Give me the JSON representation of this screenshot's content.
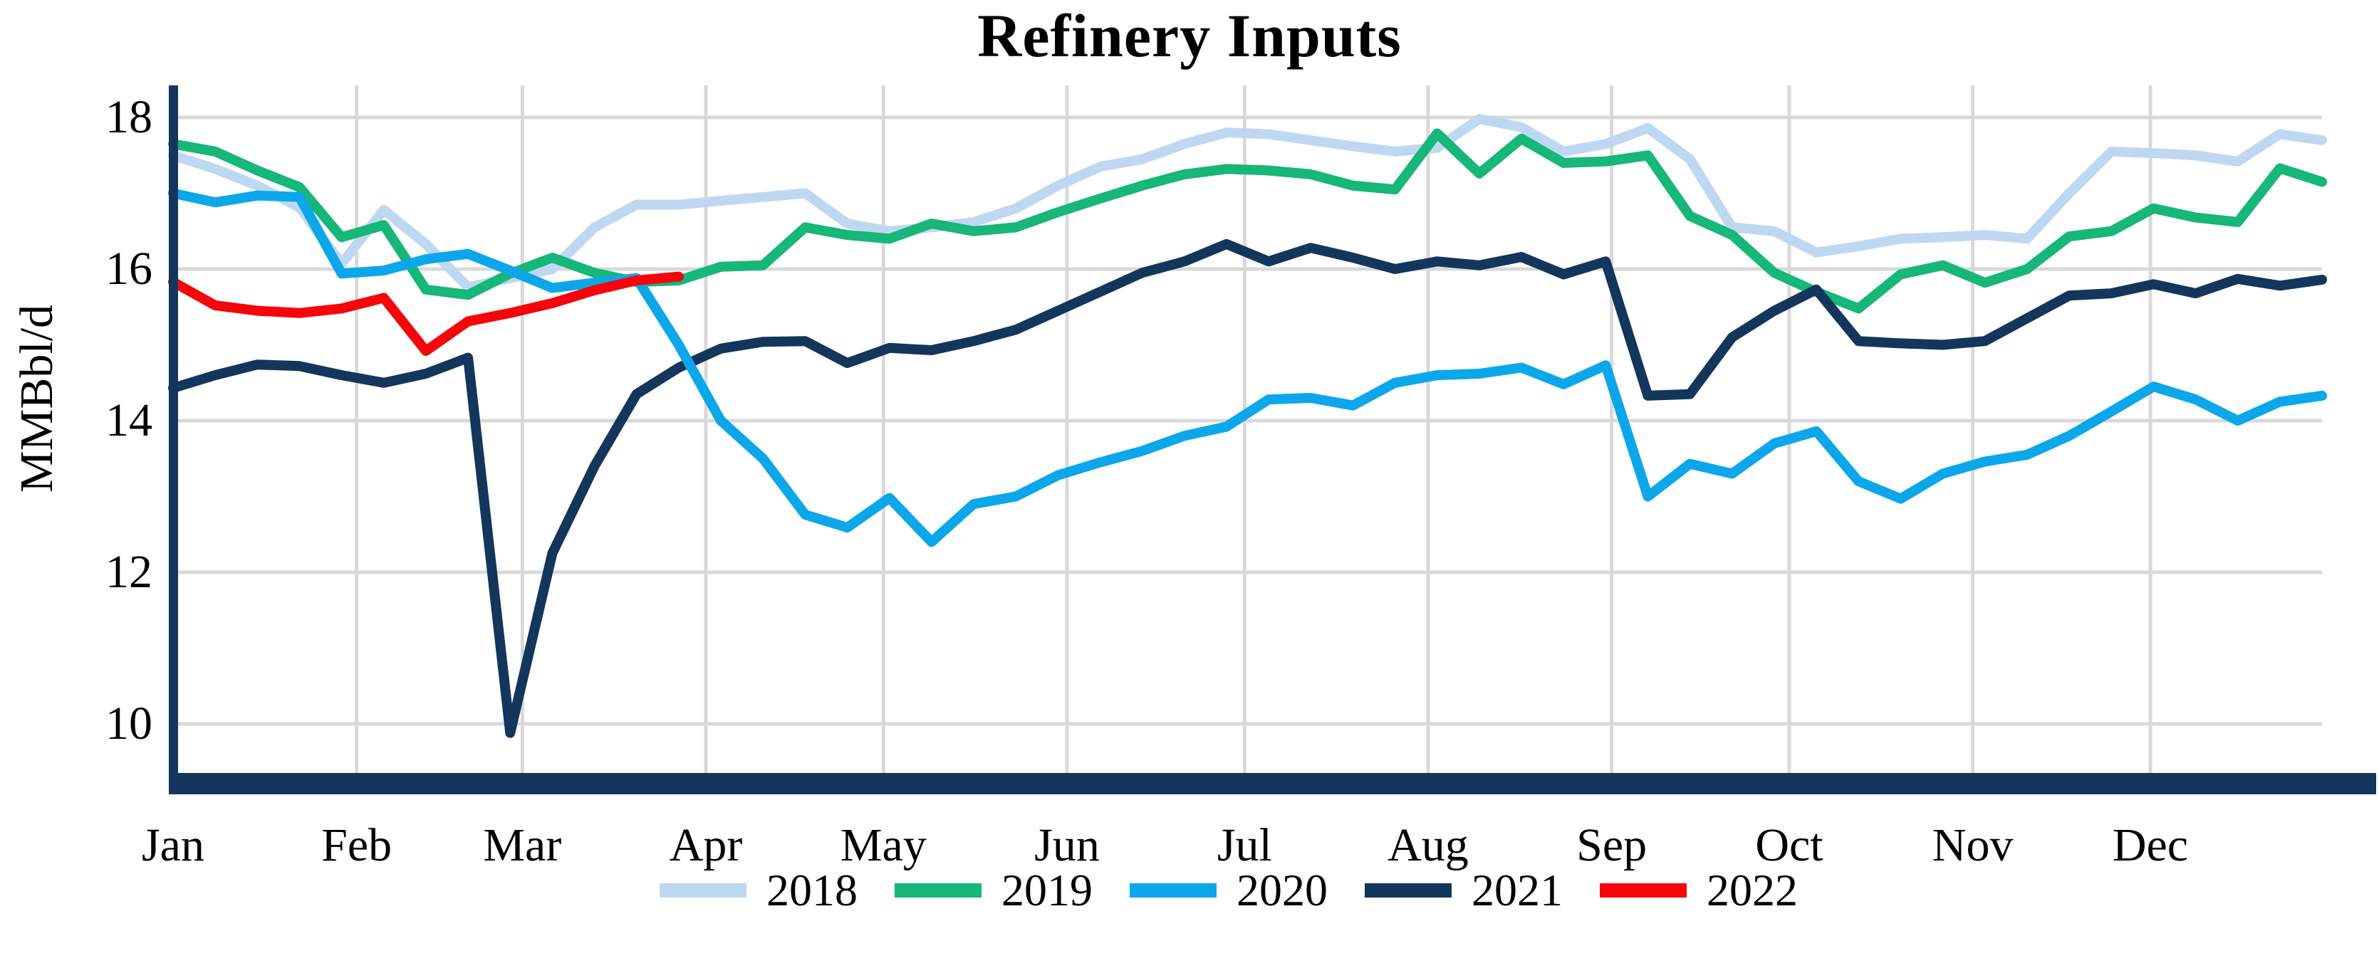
{
  "title": "Refinery Inputs",
  "y_axis": {
    "label": "MMBbl/d",
    "ticks": [
      18,
      16,
      14,
      12,
      10
    ]
  },
  "x_axis": {
    "months": [
      "Jan",
      "Feb",
      "Mar",
      "Apr",
      "May",
      "Jun",
      "Jul",
      "Aug",
      "Sep",
      "Oct",
      "Nov",
      "Dec"
    ]
  },
  "legend": [
    {
      "label": "2018",
      "color": "#BFD8F2"
    },
    {
      "label": "2019",
      "color": "#17B679"
    },
    {
      "label": "2020",
      "color": "#0CA7EA"
    },
    {
      "label": "2021",
      "color": "#14365D"
    },
    {
      "label": "2022",
      "color": "#F6060A"
    }
  ],
  "colors": {
    "grid": "#D9D9D9",
    "axis": "#14365D",
    "background": "#FFFFFF",
    "text": "#000000"
  },
  "chart_data": {
    "type": "line",
    "title": "Refinery Inputs",
    "ylabel": "MMBbl/d",
    "xlabel": "",
    "x_unit": "weekly data, Jan through Dec",
    "month_labels": [
      "Jan",
      "Feb",
      "Mar",
      "Apr",
      "May",
      "Jun",
      "Jul",
      "Aug",
      "Sep",
      "Oct",
      "Nov",
      "Dec"
    ],
    "month_day_offsets": [
      0,
      31,
      59,
      90,
      120,
      151,
      181,
      212,
      243,
      273,
      304,
      334
    ],
    "ylim": [
      9.0,
      18.45
    ],
    "yticks": [
      18,
      16,
      14,
      12,
      10
    ],
    "grid": true,
    "legend_position": "bottom",
    "series": [
      {
        "name": "2018",
        "color": "#BFD8F2",
        "values": [
          17.5,
          17.32,
          17.1,
          16.81,
          16.07,
          16.78,
          16.33,
          15.76,
          15.88,
          16.0,
          16.55,
          16.85,
          16.85,
          16.9,
          16.95,
          17.0,
          16.6,
          16.5,
          16.55,
          16.62,
          16.8,
          17.1,
          17.35,
          17.45,
          17.65,
          17.8,
          17.78,
          17.7,
          17.62,
          17.55,
          17.6,
          17.98,
          17.87,
          17.55,
          17.65,
          17.86,
          17.45,
          16.55,
          16.5,
          16.22,
          16.3,
          16.4,
          16.42,
          16.45,
          16.4,
          17.0,
          17.55,
          17.53,
          17.5,
          17.42,
          17.78,
          17.7
        ]
      },
      {
        "name": "2019",
        "color": "#17B679",
        "values": [
          17.65,
          17.55,
          17.3,
          17.08,
          16.42,
          16.58,
          15.73,
          15.66,
          15.94,
          16.15,
          15.95,
          15.83,
          15.85,
          16.03,
          16.05,
          16.55,
          16.45,
          16.4,
          16.6,
          16.5,
          16.55,
          16.75,
          16.93,
          17.1,
          17.25,
          17.32,
          17.3,
          17.25,
          17.1,
          17.05,
          17.79,
          17.26,
          17.72,
          17.4,
          17.42,
          17.5,
          16.7,
          16.45,
          15.95,
          15.7,
          15.48,
          15.93,
          16.05,
          15.82,
          16.0,
          16.43,
          16.5,
          16.8,
          16.68,
          16.62,
          17.33,
          17.15
        ]
      },
      {
        "name": "2020",
        "color": "#0CA7EA",
        "values": [
          17.0,
          16.88,
          16.97,
          16.95,
          15.94,
          15.98,
          16.13,
          16.2,
          15.98,
          15.75,
          15.82,
          15.88,
          15.0,
          14.0,
          13.5,
          12.76,
          12.59,
          12.98,
          12.4,
          12.9,
          13.0,
          13.28,
          13.45,
          13.6,
          13.8,
          13.92,
          14.28,
          14.3,
          14.2,
          14.5,
          14.6,
          14.62,
          14.7,
          14.48,
          14.73,
          13.0,
          13.43,
          13.3,
          13.7,
          13.86,
          13.2,
          12.97,
          13.3,
          13.46,
          13.55,
          13.8,
          14.12,
          14.45,
          14.28,
          14.0,
          14.25,
          14.33
        ]
      },
      {
        "name": "2021",
        "color": "#14365D",
        "values": [
          14.43,
          14.6,
          14.74,
          14.72,
          14.6,
          14.5,
          14.62,
          14.83,
          9.88,
          12.25,
          13.4,
          14.35,
          14.7,
          14.95,
          15.04,
          15.05,
          14.76,
          14.96,
          14.93,
          15.05,
          15.2,
          15.45,
          15.7,
          15.95,
          16.1,
          16.33,
          16.1,
          16.28,
          16.15,
          16.0,
          16.1,
          16.05,
          16.16,
          15.93,
          16.1,
          14.33,
          14.35,
          15.1,
          15.45,
          15.73,
          15.05,
          15.02,
          15.0,
          15.05,
          15.35,
          15.65,
          15.68,
          15.8,
          15.68,
          15.87,
          15.78,
          15.86
        ]
      },
      {
        "name": "2022",
        "color": "#F6060A",
        "values": [
          15.83,
          15.52,
          15.45,
          15.42,
          15.48,
          15.62,
          14.92,
          15.31,
          15.42,
          15.55,
          15.72,
          15.85,
          15.9
        ]
      }
    ]
  }
}
